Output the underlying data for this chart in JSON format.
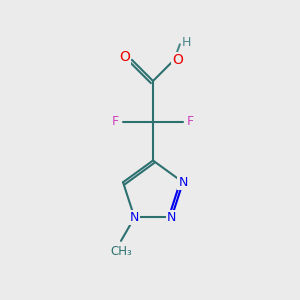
{
  "background_color": "#ebebeb",
  "bond_color": "#2d7070",
  "nitrogen_color": "#0000ee",
  "oxygen_color": "#ee0000",
  "fluorine_color": "#cc44bb",
  "hydrogen_color": "#4a8888",
  "figsize": [
    3.0,
    3.0
  ],
  "dpi": 100,
  "xlim": [
    0,
    10
  ],
  "ylim": [
    0,
    10
  ]
}
